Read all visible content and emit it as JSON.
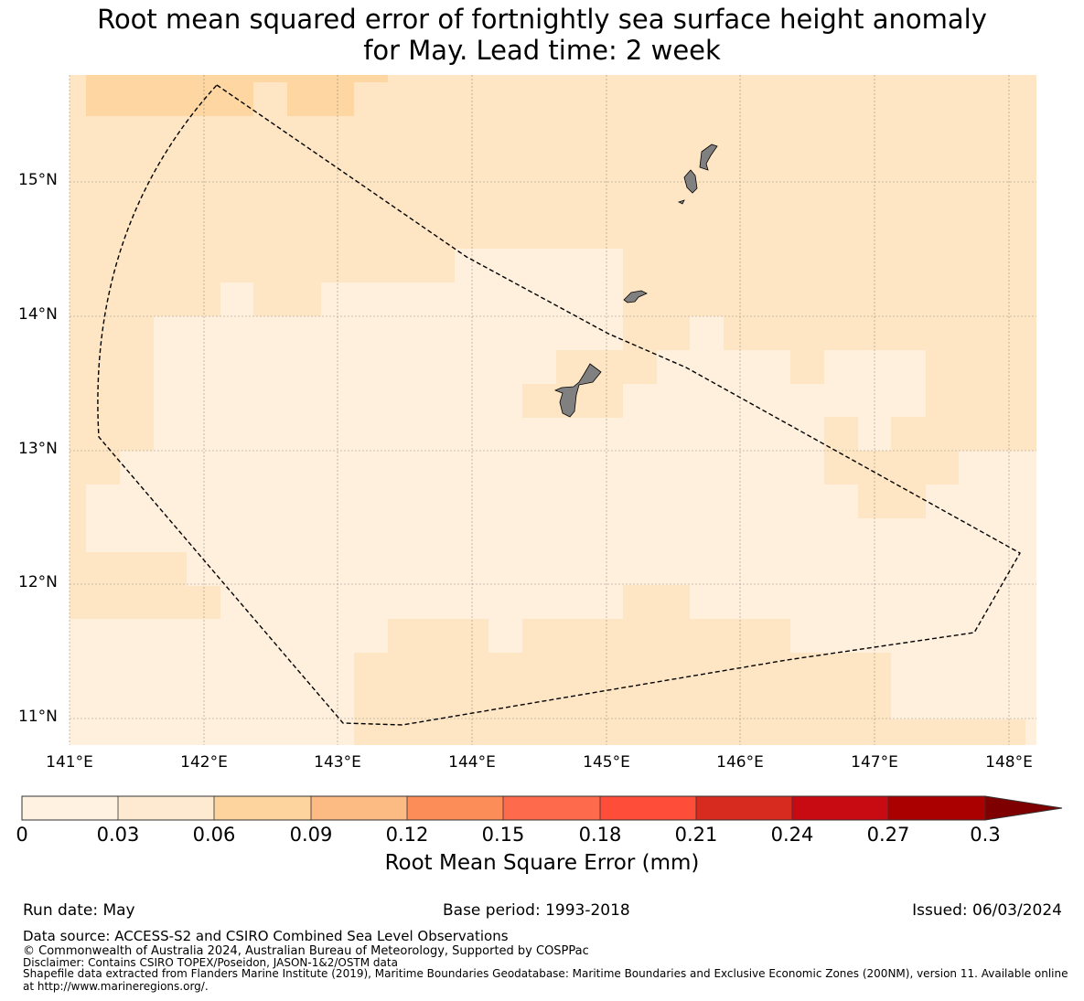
{
  "title": {
    "line1": "Root mean squared error of fortnightly sea surface height anomaly",
    "line2": "for May. Lead time: 2 week"
  },
  "map": {
    "lat_labels": [
      "15°N",
      "14°N",
      "13°N",
      "12°N",
      "11°N"
    ],
    "lon_labels": [
      "141°E",
      "142°E",
      "143°E",
      "144°E",
      "145°E",
      "146°E",
      "147°E",
      "148°E"
    ],
    "land_color": "#808080",
    "boundary_style": "dashed black line (EEZ)"
  },
  "colorbar": {
    "ticks": [
      "0",
      "0.03",
      "0.06",
      "0.09",
      "0.12",
      "0.15",
      "0.18",
      "0.21",
      "0.24",
      "0.27",
      "0.3"
    ],
    "colors": [
      "#fff2e0",
      "#feead0",
      "#fdd49e",
      "#fdbb84",
      "#fc8d59",
      "#fe6b4c",
      "#fe4e3a",
      "#d72b20",
      "#c80a13",
      "#ab0000",
      "#7f0000"
    ],
    "label": "Root Mean Square Error (mm)",
    "extend": "max"
  },
  "footer": {
    "run_date": "Run date: May",
    "base_period": "Base period: 1993-2018",
    "issued": "Issued: 06/03/2024",
    "data_source": "Data source: ACCESS-S2 and CSIRO Combined Sea Level Observations",
    "copyright": "© Commonwealth of Australia 2024, Australian Bureau of Meteorology, Supported by COSPPac",
    "disclaimer": "Disclaimer: Contains CSIRO TOPEX/Poseidon, JASON-1&2/OSTM data",
    "shapefile_1": "Shapefile data extracted from Flanders Marine Institute (2019), Maritime Boundaries Geodatabase: Maritime Boundaries and Exclusive Economic Zones (200NM), version 11. Available online",
    "shapefile_2": "at http://www.marineregions.org/."
  }
}
